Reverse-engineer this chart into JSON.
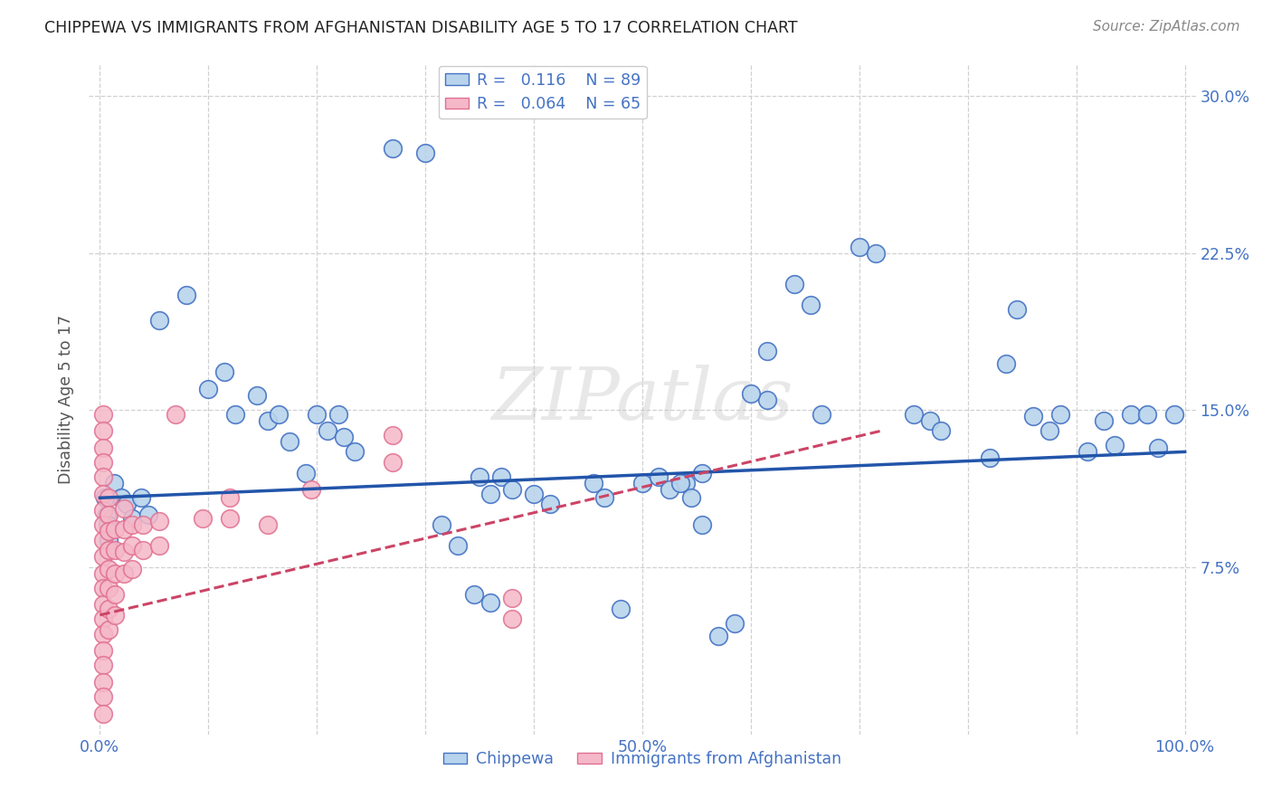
{
  "title": "CHIPPEWA VS IMMIGRANTS FROM AFGHANISTAN DISABILITY AGE 5 TO 17 CORRELATION CHART",
  "source": "Source: ZipAtlas.com",
  "ylabel": "Disability Age 5 to 17",
  "xlim": [
    -0.01,
    1.01
  ],
  "ylim": [
    -0.005,
    0.315
  ],
  "y_ticks": [
    0.075,
    0.15,
    0.225,
    0.3
  ],
  "y_tick_labels": [
    "7.5%",
    "15.0%",
    "22.5%",
    "30.0%"
  ],
  "x_ticks": [
    0.0,
    0.5,
    1.0
  ],
  "x_tick_labels": [
    "0.0%",
    "50.0%",
    "100.0%"
  ],
  "watermark": "ZIPatlas",
  "background_color": "#ffffff",
  "grid_color": "#d0d0d0",
  "chippewa_color": "#b8d4ec",
  "afghanistan_color": "#f5b8c8",
  "chippewa_edge_color": "#4472c4",
  "afghanistan_edge_color": "#e07090",
  "chippewa_line_color": "#2255aa",
  "afghanistan_line_color": "#cc4466",
  "chippewa_line_x": [
    0.0,
    1.0
  ],
  "chippewa_line_y": [
    0.108,
    0.13
  ],
  "afghanistan_line_x": [
    0.0,
    0.72
  ],
  "afghanistan_line_y": [
    0.052,
    0.14
  ],
  "chippewa_x": [
    0.27,
    0.3,
    0.08,
    0.055,
    0.1,
    0.115,
    0.125,
    0.145,
    0.155,
    0.165,
    0.175,
    0.19,
    0.2,
    0.21,
    0.22,
    0.225,
    0.235,
    0.013,
    0.02,
    0.025,
    0.03,
    0.038,
    0.045,
    0.005,
    0.006,
    0.007,
    0.008,
    0.35,
    0.36,
    0.37,
    0.38,
    0.4,
    0.415,
    0.5,
    0.515,
    0.525,
    0.54,
    0.555,
    0.615,
    0.64,
    0.655,
    0.665,
    0.75,
    0.765,
    0.775,
    0.82,
    0.835,
    0.845,
    0.86,
    0.875,
    0.885,
    0.91,
    0.925,
    0.935,
    0.95,
    0.965,
    0.975,
    0.99,
    0.6,
    0.615,
    0.7,
    0.715,
    0.455,
    0.465,
    0.315,
    0.33,
    0.345,
    0.36,
    0.48,
    0.535,
    0.545,
    0.555,
    0.57,
    0.585
  ],
  "chippewa_y": [
    0.275,
    0.273,
    0.205,
    0.193,
    0.16,
    0.168,
    0.148,
    0.157,
    0.145,
    0.148,
    0.135,
    0.12,
    0.148,
    0.14,
    0.148,
    0.137,
    0.13,
    0.115,
    0.108,
    0.105,
    0.098,
    0.108,
    0.1,
    0.108,
    0.1,
    0.095,
    0.088,
    0.118,
    0.11,
    0.118,
    0.112,
    0.11,
    0.105,
    0.115,
    0.118,
    0.112,
    0.115,
    0.12,
    0.155,
    0.21,
    0.2,
    0.148,
    0.148,
    0.145,
    0.14,
    0.127,
    0.172,
    0.198,
    0.147,
    0.14,
    0.148,
    0.13,
    0.145,
    0.133,
    0.148,
    0.148,
    0.132,
    0.148,
    0.158,
    0.178,
    0.228,
    0.225,
    0.115,
    0.108,
    0.095,
    0.085,
    0.062,
    0.058,
    0.055,
    0.115,
    0.108,
    0.095,
    0.042,
    0.048
  ],
  "afghanistan_x": [
    0.003,
    0.003,
    0.003,
    0.003,
    0.003,
    0.003,
    0.003,
    0.003,
    0.003,
    0.003,
    0.003,
    0.003,
    0.003,
    0.003,
    0.003,
    0.003,
    0.003,
    0.003,
    0.003,
    0.003,
    0.008,
    0.008,
    0.008,
    0.008,
    0.008,
    0.008,
    0.008,
    0.008,
    0.014,
    0.014,
    0.014,
    0.014,
    0.014,
    0.022,
    0.022,
    0.022,
    0.022,
    0.03,
    0.03,
    0.03,
    0.04,
    0.04,
    0.055,
    0.055,
    0.07,
    0.095,
    0.12,
    0.12,
    0.155,
    0.195,
    0.27,
    0.27,
    0.38,
    0.38
  ],
  "afghanistan_y": [
    0.148,
    0.14,
    0.132,
    0.125,
    0.118,
    0.11,
    0.102,
    0.095,
    0.088,
    0.08,
    0.072,
    0.065,
    0.057,
    0.05,
    0.043,
    0.035,
    0.028,
    0.02,
    0.013,
    0.005,
    0.108,
    0.1,
    0.092,
    0.083,
    0.074,
    0.065,
    0.055,
    0.045,
    0.093,
    0.083,
    0.072,
    0.062,
    0.052,
    0.103,
    0.093,
    0.082,
    0.072,
    0.095,
    0.085,
    0.074,
    0.095,
    0.083,
    0.097,
    0.085,
    0.148,
    0.098,
    0.108,
    0.098,
    0.095,
    0.112,
    0.138,
    0.125,
    0.06,
    0.05
  ]
}
